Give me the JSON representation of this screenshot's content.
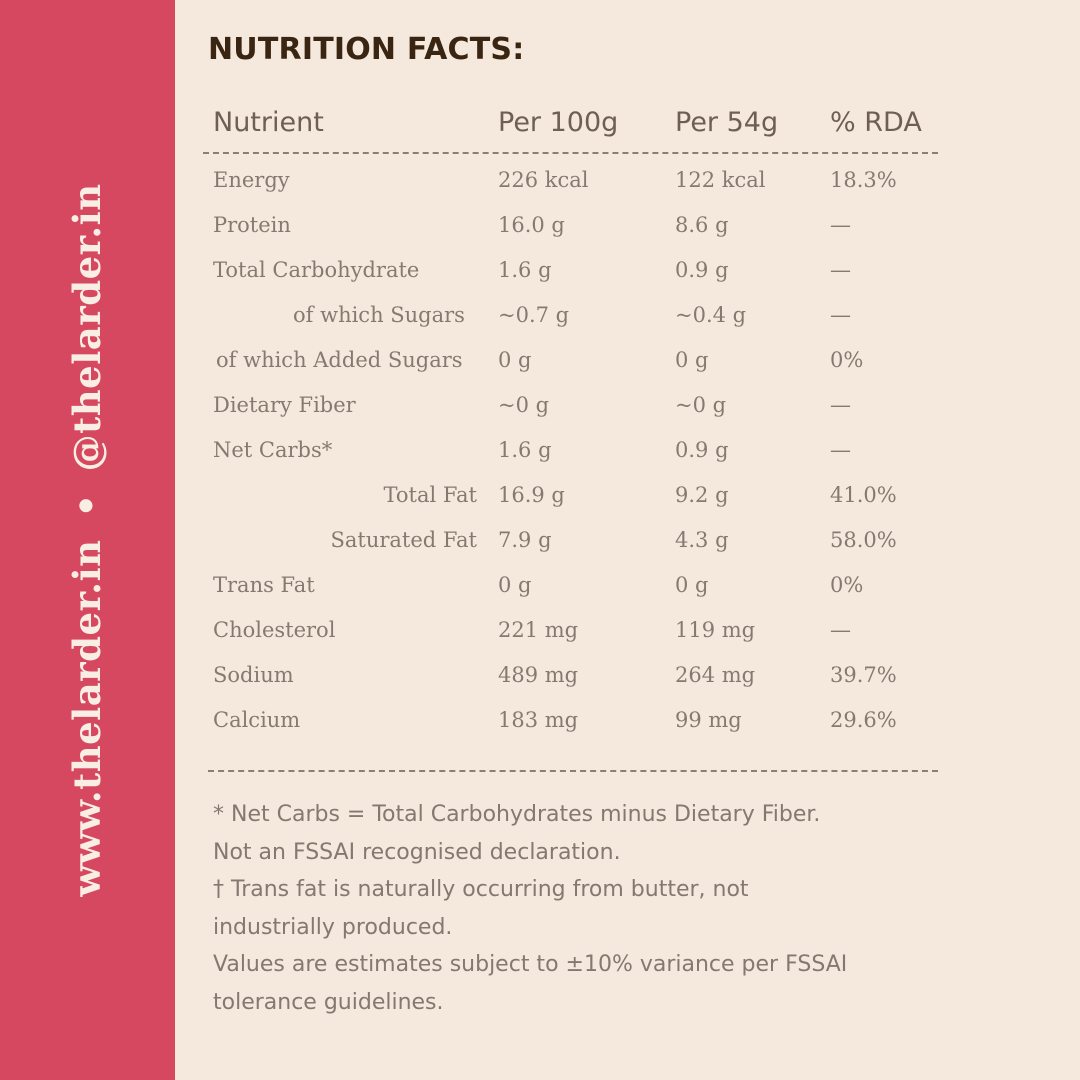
{
  "side_banner": {
    "text_left": "www.thelarder.in",
    "separator": "•",
    "text_right": "@thelarder.in"
  },
  "title": "NUTRITION FACTS:",
  "table": {
    "headers": [
      "Nutrient",
      "Per 100g",
      "Per 54g",
      "% RDA"
    ],
    "rows": [
      {
        "nutrient": "Energy",
        "per100": "226 kcal",
        "per54": "122 kcal",
        "rda": "18.3%"
      },
      {
        "nutrient": "Protein",
        "per100": "16.0 g",
        "per54": "8.6 g",
        "rda": "—"
      },
      {
        "nutrient": "Total Carbohydrate",
        "per100": "1.6 g",
        "per54": "0.9 g",
        "rda": "—"
      },
      {
        "nutrient": "of which Sugars",
        "per100": "~0.7 g",
        "per54": "~0.4 g",
        "rda": "—"
      },
      {
        "nutrient": "of which Added Sugars",
        "per100": "0 g",
        "per54": "0 g",
        "rda": "0%"
      },
      {
        "nutrient": "Dietary Fiber",
        "per100": "~0 g",
        "per54": "~0 g",
        "rda": "—"
      },
      {
        "nutrient": "Net Carbs*",
        "per100": "1.6 g",
        "per54": "0.9 g",
        "rda": "—"
      },
      {
        "nutrient": "Total Fat",
        "per100": "16.9 g",
        "per54": "9.2 g",
        "rda": "41.0%"
      },
      {
        "nutrient": "Saturated Fat",
        "per100": "7.9 g",
        "per54": "4.3 g",
        "rda": "58.0%"
      },
      {
        "nutrient": "Trans Fat",
        "per100": "0 g",
        "per54": "0 g",
        "rda": "0%"
      },
      {
        "nutrient": "Cholesterol",
        "per100": "221 mg",
        "per54": "119 mg",
        "rda": "—"
      },
      {
        "nutrient": "Sodium",
        "per100": "489 mg",
        "per54": "264 mg",
        "rda": "39.7%"
      },
      {
        "nutrient": "Calcium",
        "per100": "183 mg",
        "per54": "99 mg",
        "rda": "29.6%"
      }
    ]
  },
  "notes": [
    "* Net Carbs = Total Carbohydrates minus Dietary Fiber.",
    "Not an FSSAI recognised declaration.",
    "† Trans fat is naturally occurring from butter, not",
    "industrially produced.",
    "Values are estimates subject to ±10% variance per FSSAI",
    "tolerance guidelines."
  ]
}
